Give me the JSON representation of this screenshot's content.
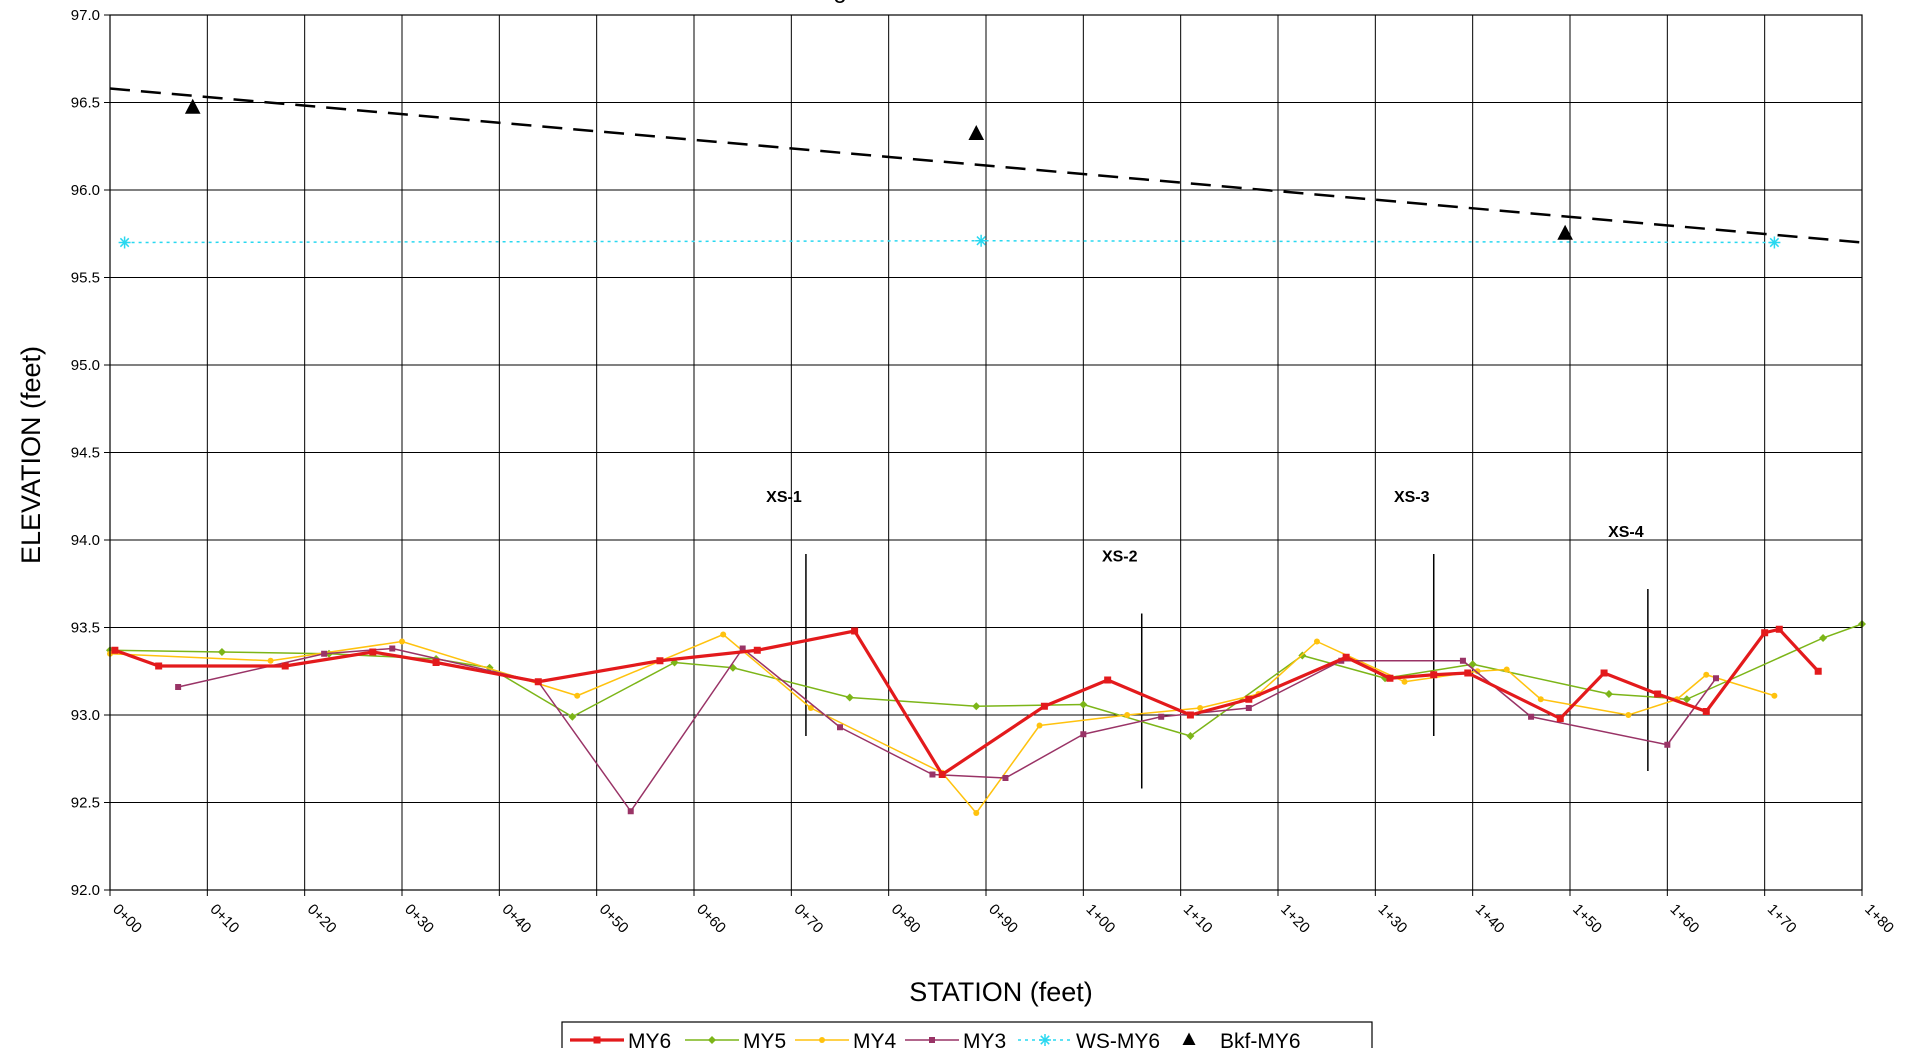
{
  "chart_data": {
    "type": "line",
    "title": "g",
    "xlabel": "STATION (feet)",
    "ylabel": "ELEVATION (feet)",
    "xlim": [
      0,
      180
    ],
    "ylim": [
      92.0,
      97.0
    ],
    "grid": true,
    "legend_position": "bottom",
    "x_tick_labels": [
      "0+00",
      "0+10",
      "0+20",
      "0+30",
      "0+40",
      "0+50",
      "0+60",
      "0+70",
      "0+80",
      "0+90",
      "1+00",
      "1+10",
      "1+20",
      "1+30",
      "1+40",
      "1+50",
      "1+60",
      "1+70",
      "1+80"
    ],
    "y_tick_labels": [
      "92.0",
      "92.5",
      "93.0",
      "93.5",
      "94.0",
      "94.5",
      "95.0",
      "95.5",
      "96.0",
      "96.5",
      "97.0"
    ],
    "series": [
      {
        "name": "MY6",
        "color": "#e31a1c",
        "marker": "square",
        "points": [
          [
            0.5,
            93.37
          ],
          [
            5,
            93.28
          ],
          [
            18,
            93.28
          ],
          [
            27,
            93.36
          ],
          [
            33.5,
            93.3
          ],
          [
            44,
            93.19
          ],
          [
            56.5,
            93.31
          ],
          [
            66.5,
            93.37
          ],
          [
            76.5,
            93.48
          ],
          [
            85.5,
            92.66
          ],
          [
            96,
            93.05
          ],
          [
            102.5,
            93.2
          ],
          [
            111,
            93.0
          ],
          [
            117,
            93.09
          ],
          [
            127,
            93.33
          ],
          [
            131.5,
            93.21
          ],
          [
            136,
            93.23
          ],
          [
            139.5,
            93.24
          ],
          [
            149,
            92.98
          ],
          [
            153.5,
            93.24
          ],
          [
            159,
            93.12
          ],
          [
            164,
            93.02
          ],
          [
            170,
            93.47
          ],
          [
            171.5,
            93.49
          ],
          [
            175.5,
            93.25
          ]
        ]
      },
      {
        "name": "MY5",
        "color": "#7cb518",
        "marker": "diamond",
        "points": [
          [
            0,
            93.37
          ],
          [
            11.5,
            93.36
          ],
          [
            22.5,
            93.35
          ],
          [
            33.5,
            93.32
          ],
          [
            39,
            93.27
          ],
          [
            47.5,
            92.99
          ],
          [
            58,
            93.3
          ],
          [
            64,
            93.27
          ],
          [
            76,
            93.1
          ],
          [
            89,
            93.05
          ],
          [
            100,
            93.06
          ],
          [
            111,
            92.88
          ],
          [
            122.5,
            93.34
          ],
          [
            131,
            93.21
          ],
          [
            140,
            93.29
          ],
          [
            154,
            93.12
          ],
          [
            162,
            93.09
          ],
          [
            176,
            93.44
          ],
          [
            180,
            93.52
          ]
        ]
      },
      {
        "name": "MY4",
        "color": "#ffc20e",
        "marker": "circle",
        "points": [
          [
            0,
            93.35
          ],
          [
            16.5,
            93.31
          ],
          [
            30,
            93.42
          ],
          [
            48,
            93.11
          ],
          [
            63,
            93.46
          ],
          [
            72,
            93.04
          ],
          [
            85.5,
            92.67
          ],
          [
            89,
            92.44
          ],
          [
            95.5,
            92.94
          ],
          [
            104.5,
            93.0
          ],
          [
            112,
            93.04
          ],
          [
            118,
            93.12
          ],
          [
            124,
            93.42
          ],
          [
            133,
            93.19
          ],
          [
            140.5,
            93.25
          ],
          [
            143.5,
            93.26
          ],
          [
            147,
            93.09
          ],
          [
            156,
            93.0
          ],
          [
            161,
            93.09
          ],
          [
            164,
            93.23
          ],
          [
            171,
            93.11
          ]
        ]
      },
      {
        "name": "MY3",
        "color": "#993366",
        "marker": "square",
        "points": [
          [
            7,
            93.16
          ],
          [
            22,
            93.35
          ],
          [
            29,
            93.38
          ],
          [
            44,
            93.19
          ],
          [
            53.5,
            92.45
          ],
          [
            65,
            93.38
          ],
          [
            75,
            92.93
          ],
          [
            84.5,
            92.66
          ],
          [
            92,
            92.64
          ],
          [
            100,
            92.89
          ],
          [
            108,
            92.99
          ],
          [
            117,
            93.04
          ],
          [
            126.5,
            93.31
          ],
          [
            139,
            93.31
          ],
          [
            146,
            92.99
          ],
          [
            160,
            92.83
          ],
          [
            165,
            93.21
          ]
        ]
      },
      {
        "name": "WS-MY6",
        "color": "#29d8f0",
        "marker": "asterisk",
        "points": [
          [
            1.5,
            95.7
          ],
          [
            89.5,
            95.71
          ],
          [
            171,
            95.7
          ]
        ]
      },
      {
        "name": "Bkf-MY6",
        "color": "#000000",
        "marker": "triangle",
        "points": [
          [
            8.5,
            96.47
          ],
          [
            89,
            96.32
          ],
          [
            149.5,
            95.75
          ]
        ]
      }
    ],
    "trendline": {
      "points": [
        [
          0,
          96.58
        ],
        [
          180,
          95.7
        ]
      ],
      "style": "dashed",
      "color": "#000000"
    },
    "annotations": [
      {
        "label": "XS-1",
        "line_x": 71.5,
        "line_y": [
          92.88,
          93.92
        ]
      },
      {
        "label": "XS-2",
        "line_x": 106,
        "line_y": [
          92.58,
          93.58
        ]
      },
      {
        "label": "XS-3",
        "line_x": 136,
        "line_y": [
          92.88,
          93.92
        ]
      },
      {
        "label": "XS-4",
        "line_x": 158,
        "line_y": [
          92.68,
          93.72
        ]
      }
    ]
  }
}
